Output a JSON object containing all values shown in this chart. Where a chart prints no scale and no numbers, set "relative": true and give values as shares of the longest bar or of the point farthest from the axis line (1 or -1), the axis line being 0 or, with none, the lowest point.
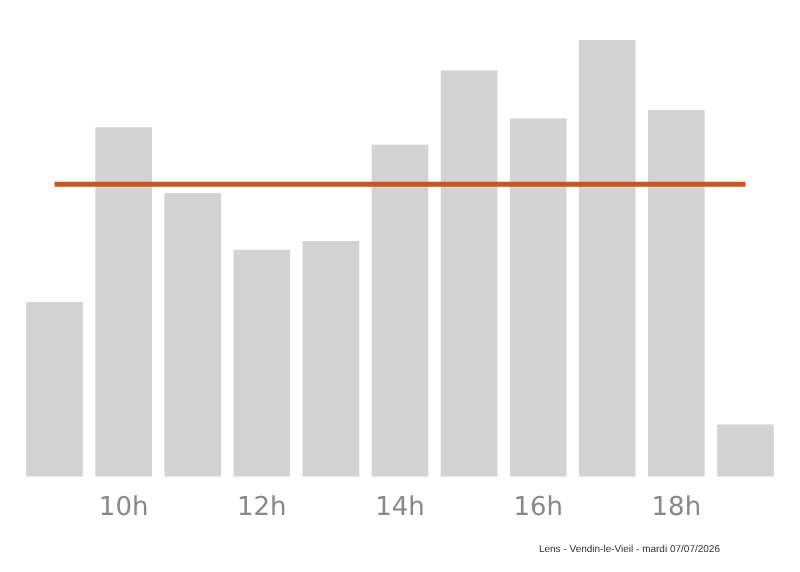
{
  "chart_data": {
    "type": "bar",
    "relative": true,
    "categories": [
      null,
      "10h",
      null,
      "12h",
      null,
      "14h",
      null,
      "16h",
      null,
      "18h",
      null
    ],
    "values": [
      0.4,
      0.8,
      0.65,
      0.52,
      0.54,
      0.76,
      0.93,
      0.82,
      1,
      0.84,
      0.12
    ],
    "color": "#d3d3d3",
    "ref_lines": [
      {
        "axis": "y",
        "value": 0.67,
        "color": "#c8561e"
      }
    ],
    "grid": false,
    "legend": false,
    "annotations": [
      "Lens - Vendin-le-Vieil - mardi 07/07/2026"
    ]
  }
}
